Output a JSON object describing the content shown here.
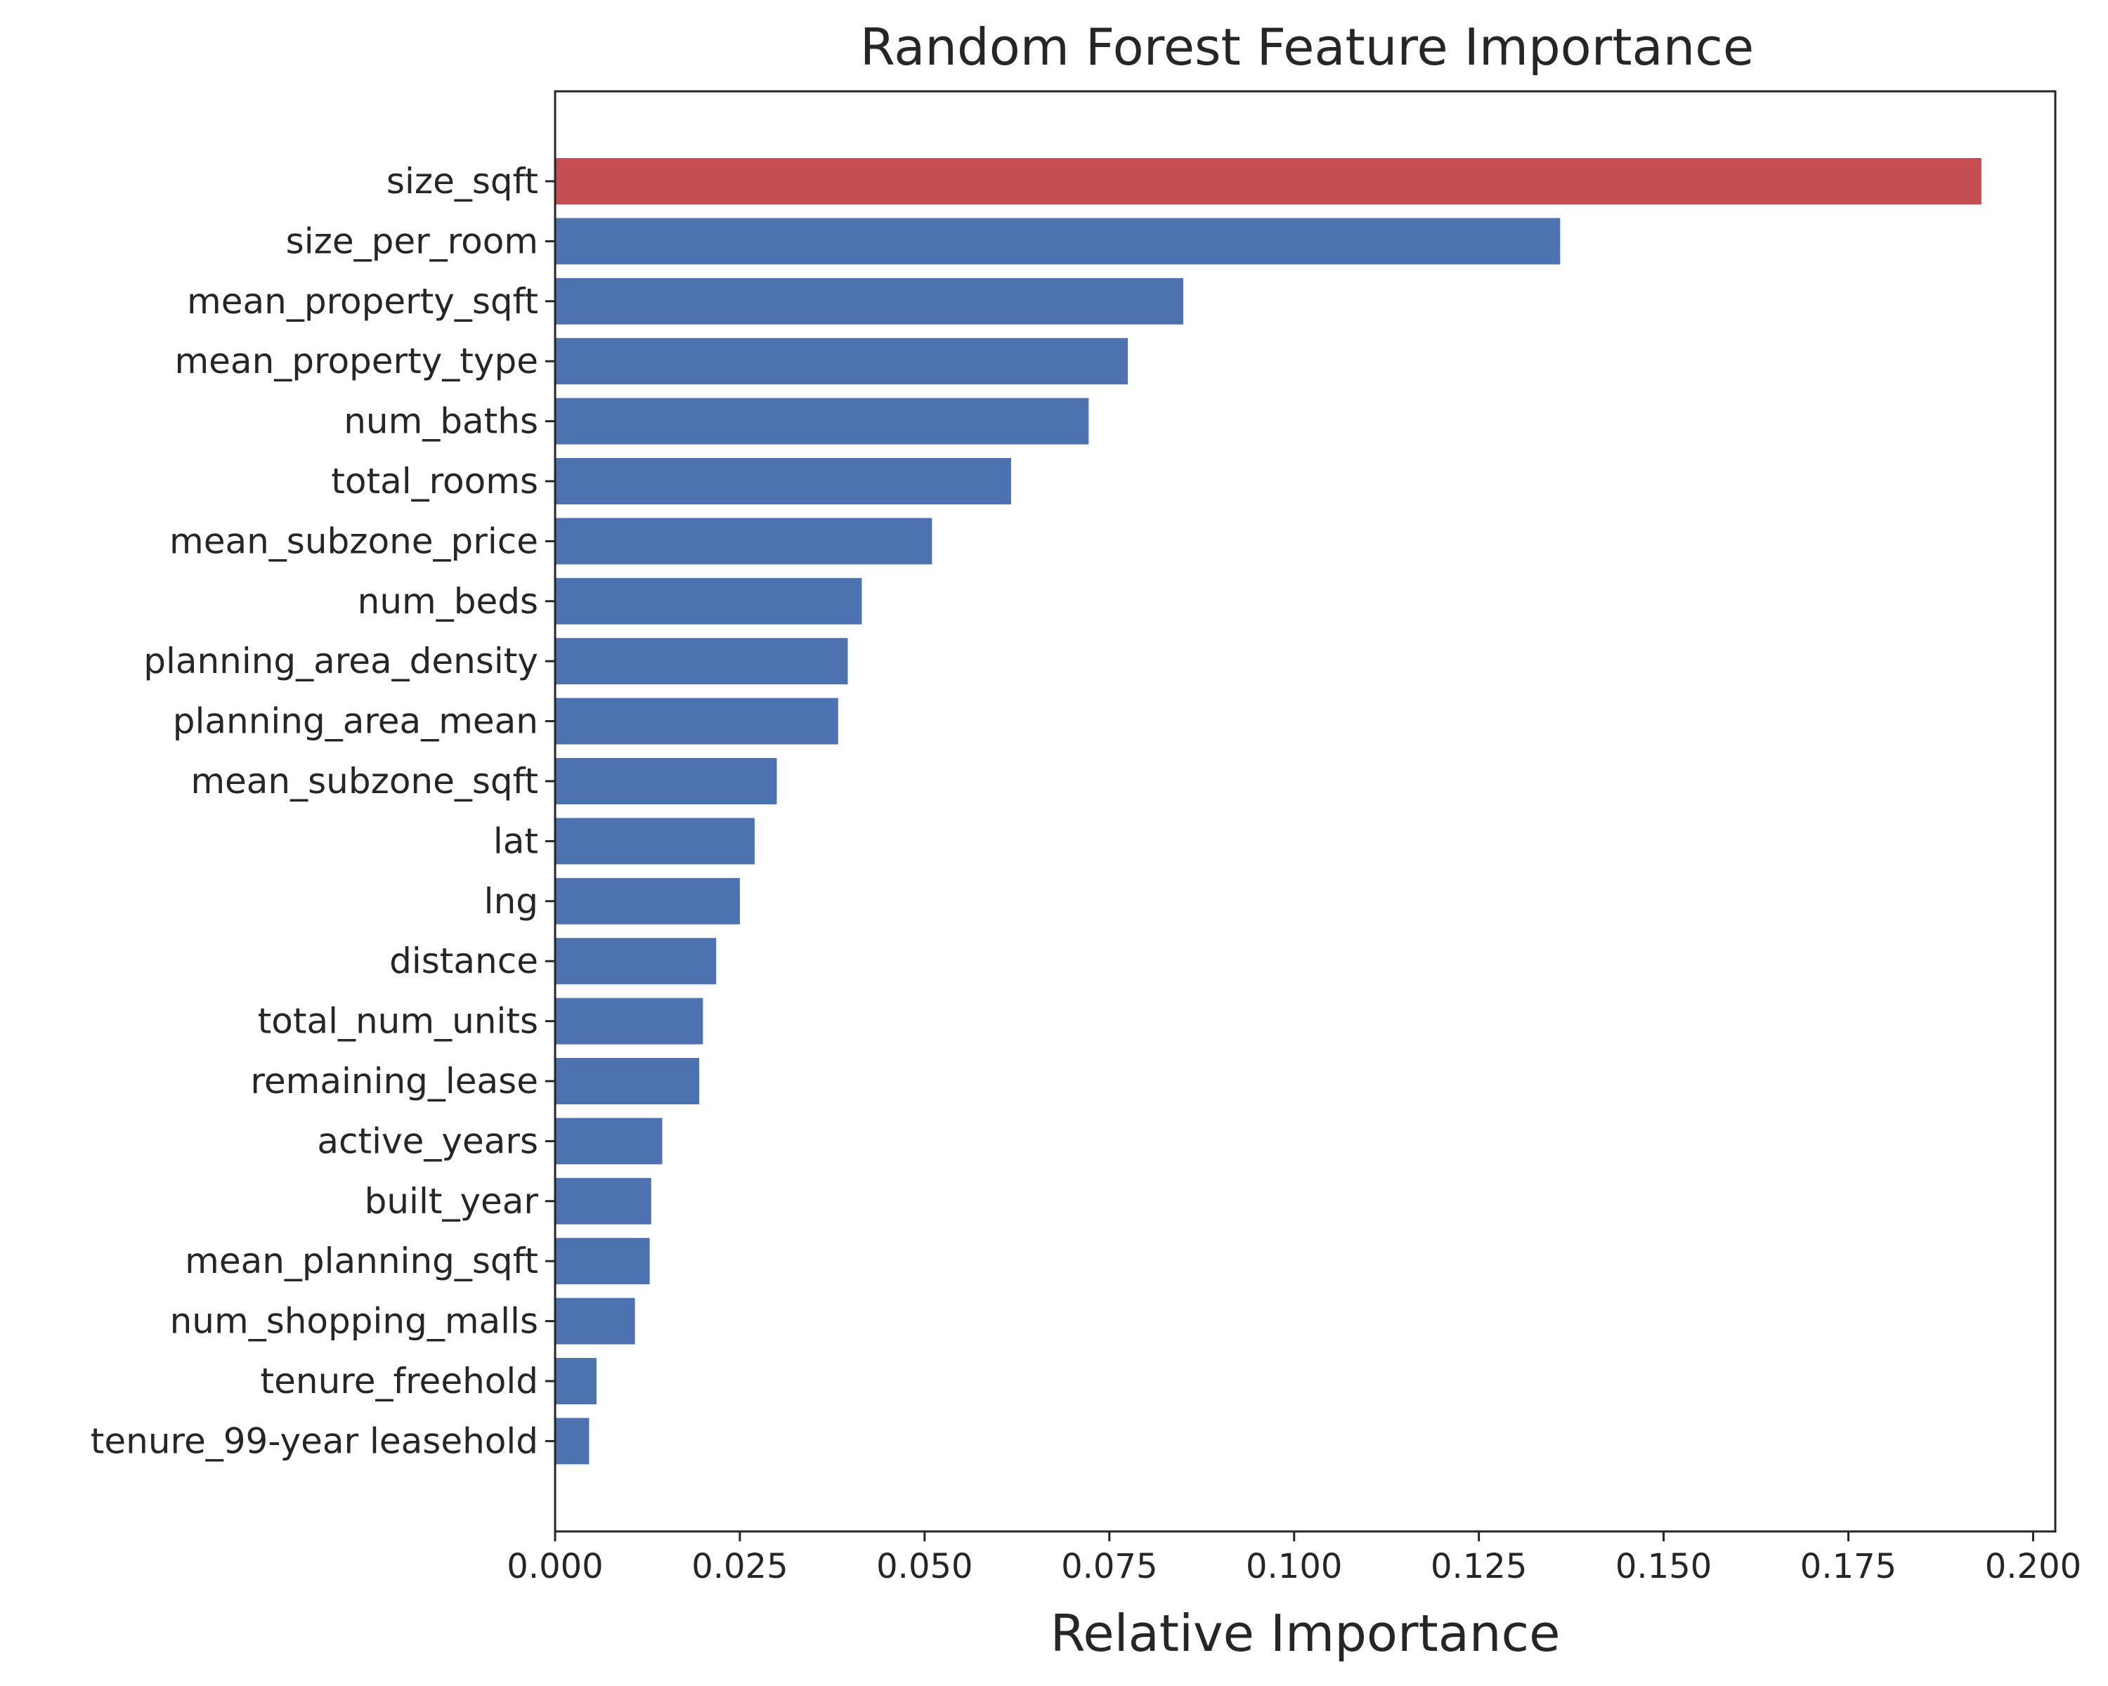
{
  "chart_data": {
    "type": "bar",
    "orientation": "horizontal",
    "title": "Random Forest Feature Importance",
    "xlabel": "Relative Importance",
    "ylabel": "",
    "xlim": [
      0,
      0.203
    ],
    "x_ticks": [
      "0.000",
      "0.025",
      "0.050",
      "0.075",
      "0.100",
      "0.125",
      "0.150",
      "0.175",
      "0.200"
    ],
    "x_tick_values": [
      0,
      0.025,
      0.05,
      0.075,
      0.1,
      0.125,
      0.15,
      0.175,
      0.2
    ],
    "grid": false,
    "legend": "none",
    "colors": {
      "highlight": "#c44e52",
      "default": "#4c72b0",
      "axis": "#262626"
    },
    "categories": [
      "size_sqft",
      "size_per_room",
      "mean_property_sqft",
      "mean_property_type",
      "num_baths",
      "total_rooms",
      "mean_subzone_price",
      "num_beds",
      "planning_area_density",
      "planning_area_mean",
      "mean_subzone_sqft",
      "lat",
      "lng",
      "distance",
      "total_num_units",
      "remaining_lease",
      "active_years",
      "built_year",
      "mean_planning_sqft",
      "num_shopping_malls",
      "tenure_freehold",
      "tenure_99-year leasehold"
    ],
    "values": [
      0.193,
      0.136,
      0.085,
      0.0775,
      0.0722,
      0.0617,
      0.051,
      0.0415,
      0.0396,
      0.0383,
      0.03,
      0.027,
      0.025,
      0.0218,
      0.02,
      0.0195,
      0.0145,
      0.013,
      0.0128,
      0.0108,
      0.0056,
      0.0046
    ],
    "highlight_index": 0
  }
}
